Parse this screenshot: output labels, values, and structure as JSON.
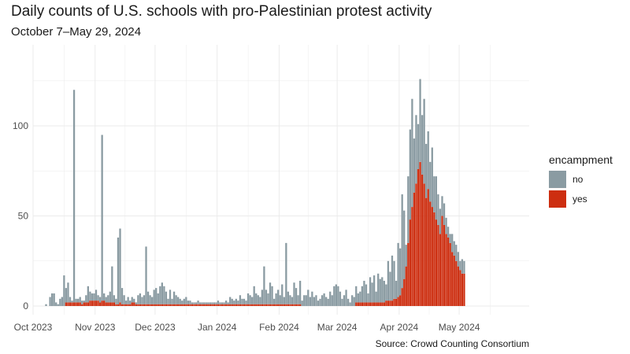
{
  "chart_data": {
    "type": "bar",
    "stacked": true,
    "title": "Daily counts of U.S. schools with pro-Palestinian protest activity",
    "subtitle": "October 7–May 29, 2024",
    "source": "Source: Crowd Counting Consortium",
    "xlabel": "",
    "ylabel": "",
    "x_start": "2023-10-07",
    "x_end": "2024-05-29",
    "x_domain": [
      "2023-10-01",
      "2024-06-05"
    ],
    "ylim": [
      0,
      145
    ],
    "y_ticks": [
      0,
      50,
      100
    ],
    "x_ticks": [
      {
        "date": "2023-10-01",
        "label": "Oct 2023"
      },
      {
        "date": "2023-11-01",
        "label": "Nov 2023"
      },
      {
        "date": "2023-12-01",
        "label": "Dec 2023"
      },
      {
        "date": "2024-01-01",
        "label": "Jan 2024"
      },
      {
        "date": "2024-02-01",
        "label": "Feb 2024"
      },
      {
        "date": "2024-03-01",
        "label": "Mar 2024"
      },
      {
        "date": "2024-04-01",
        "label": "Apr 2024"
      },
      {
        "date": "2024-05-01",
        "label": "May 2024"
      }
    ],
    "legend": {
      "title": "encampment",
      "position": "right",
      "entries": [
        "no",
        "yes"
      ]
    },
    "colors": {
      "no": "#8a9ba2",
      "yes": "#cd2e10",
      "grid": "#ebebeb"
    },
    "series": [
      {
        "name": "no",
        "values": [
          1,
          0,
          5,
          7,
          7,
          2,
          1,
          4,
          5,
          17,
          8,
          11,
          3,
          1,
          118,
          2,
          2,
          3,
          2,
          1,
          4,
          9,
          5,
          4,
          4,
          6,
          3,
          3,
          92,
          4,
          3,
          4,
          6,
          20,
          4,
          3,
          37,
          41,
          9,
          5,
          2,
          4,
          2,
          3,
          2,
          1,
          5,
          6,
          4,
          5,
          32,
          7,
          5,
          4,
          8,
          9,
          6,
          10,
          12,
          10,
          7,
          3,
          8,
          3,
          7,
          5,
          4,
          3,
          2,
          3,
          4,
          2,
          2,
          1,
          1,
          1,
          2,
          1,
          1,
          1,
          1,
          1,
          1,
          1,
          1,
          1,
          2,
          1,
          1,
          1,
          2,
          1,
          4,
          3,
          2,
          3,
          2,
          5,
          3,
          3,
          2,
          6,
          5,
          4,
          10,
          6,
          5,
          4,
          8,
          21,
          8,
          6,
          12,
          10,
          3,
          6,
          8,
          5,
          11,
          4,
          34,
          7,
          5,
          4,
          12,
          9,
          5,
          13,
          3,
          6,
          6,
          9,
          5,
          8,
          5,
          6,
          3,
          4,
          6,
          7,
          5,
          4,
          8,
          6,
          11,
          12,
          11,
          8,
          4,
          6,
          9,
          4,
          2,
          6,
          5,
          9,
          5,
          6,
          9,
          12,
          10,
          5,
          14,
          11,
          15,
          6,
          16,
          13,
          14,
          12,
          9,
          22,
          16,
          25,
          21,
          10,
          30,
          26,
          52,
          38,
          12,
          37,
          50,
          60,
          30,
          38,
          25,
          46,
          33,
          47,
          30,
          32,
          22,
          33,
          20,
          24,
          17,
          14,
          11,
          12,
          9,
          6,
          5,
          10,
          8,
          9,
          8,
          5,
          8,
          7
        ]
      },
      {
        "name": "yes",
        "values": [
          0,
          0,
          0,
          0,
          0,
          0,
          0,
          0,
          0,
          0,
          2,
          2,
          2,
          2,
          2,
          2,
          2,
          2,
          1,
          2,
          2,
          2,
          3,
          3,
          3,
          3,
          3,
          2,
          3,
          3,
          2,
          2,
          2,
          2,
          2,
          1,
          1,
          2,
          1,
          1,
          1,
          1,
          1,
          2,
          2,
          1,
          1,
          1,
          1,
          1,
          1,
          1,
          1,
          1,
          1,
          1,
          1,
          1,
          1,
          1,
          1,
          1,
          1,
          1,
          1,
          1,
          1,
          1,
          1,
          1,
          1,
          1,
          1,
          1,
          1,
          1,
          1,
          1,
          1,
          1,
          1,
          1,
          1,
          1,
          1,
          1,
          1,
          1,
          1,
          1,
          1,
          1,
          1,
          1,
          1,
          1,
          1,
          1,
          1,
          1,
          1,
          1,
          1,
          1,
          1,
          1,
          1,
          1,
          1,
          1,
          1,
          1,
          1,
          1,
          1,
          1,
          1,
          1,
          1,
          1,
          1,
          1,
          1,
          1,
          1,
          1,
          1,
          1,
          0,
          0,
          0,
          0,
          0,
          0,
          0,
          0,
          0,
          0,
          0,
          0,
          0,
          0,
          0,
          0,
          0,
          0,
          0,
          0,
          0,
          0,
          0,
          0,
          0,
          0,
          0,
          2,
          2,
          2,
          2,
          2,
          2,
          2,
          2,
          2,
          2,
          2,
          2,
          2,
          2,
          2,
          3,
          3,
          3,
          3,
          4,
          4,
          5,
          6,
          10,
          15,
          22,
          35,
          48,
          55,
          63,
          68,
          76,
          80,
          73,
          68,
          60,
          65,
          58,
          55,
          52,
          48,
          45,
          40,
          50,
          45,
          40,
          38,
          35,
          30,
          28,
          25,
          22,
          20,
          18,
          18,
          17,
          16,
          15,
          15,
          15,
          15
        ]
      }
    ]
  }
}
